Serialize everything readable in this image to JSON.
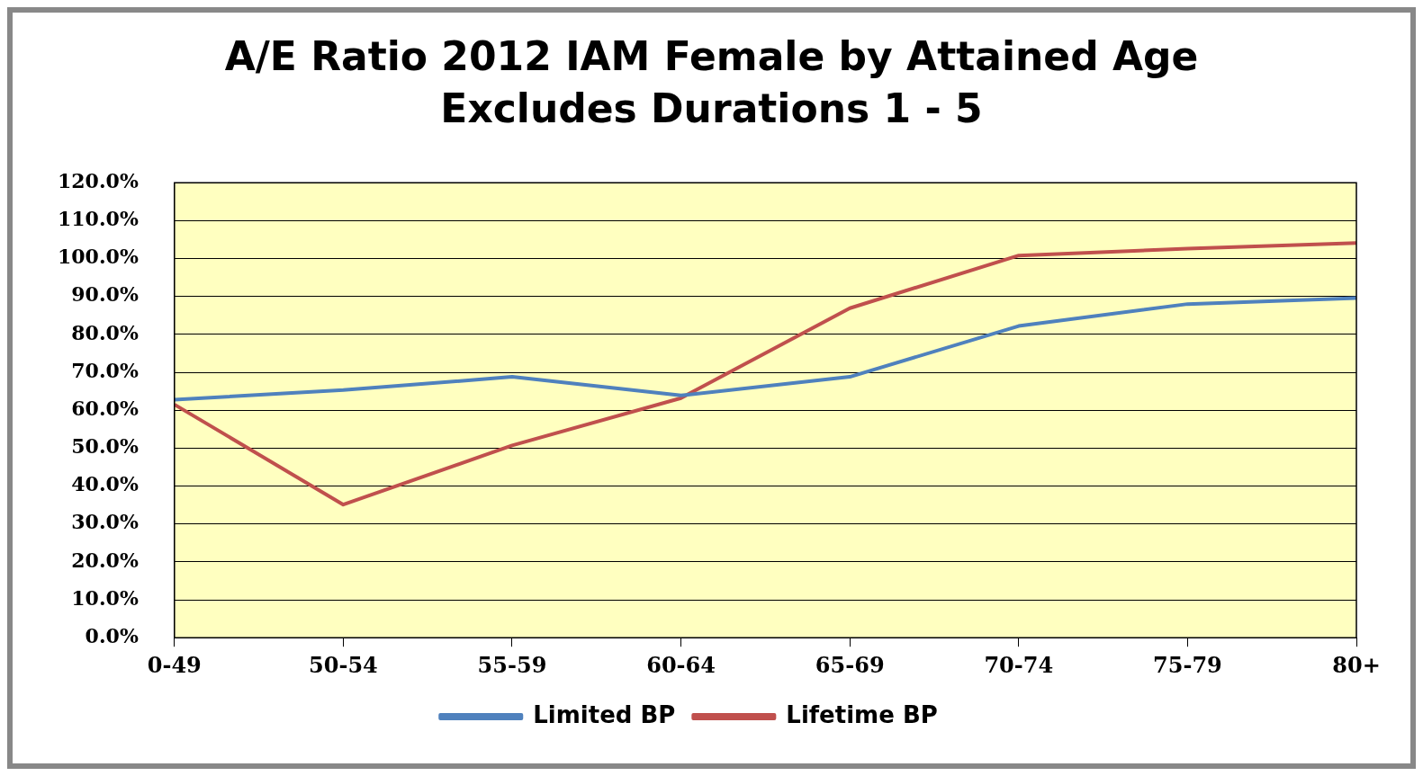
{
  "chart_data": {
    "type": "line",
    "title": "A/E Ratio 2012 IAM Female by Attained Age Excludes Durations 1 - 5",
    "categories": [
      "0-49",
      "50-54",
      "55-59",
      "60-64",
      "65-69",
      "70-74",
      "75-79",
      "80+"
    ],
    "series": [
      {
        "name": "Limited BP",
        "color": "#4f81bd",
        "values": [
          62.8,
          65.3,
          68.8,
          63.9,
          68.8,
          82.2,
          88.0,
          89.6
        ]
      },
      {
        "name": "Lifetime BP",
        "color": "#c0504d",
        "values": [
          61.5,
          35.1,
          50.7,
          63.2,
          86.9,
          100.8,
          102.6,
          104.1
        ]
      }
    ],
    "ylim": [
      0,
      120
    ],
    "yticks": [
      {
        "value": 0,
        "label": "0.0%"
      },
      {
        "value": 10,
        "label": "10.0%"
      },
      {
        "value": 20,
        "label": "20.0%"
      },
      {
        "value": 30,
        "label": "30.0%"
      },
      {
        "value": 40,
        "label": "40.0%"
      },
      {
        "value": 50,
        "label": "50.0%"
      },
      {
        "value": 60,
        "label": "60.0%"
      },
      {
        "value": 70,
        "label": "70.0%"
      },
      {
        "value": 80,
        "label": "80.0%"
      },
      {
        "value": 90,
        "label": "90.0%"
      },
      {
        "value": 100,
        "label": "100.0%"
      },
      {
        "value": 110,
        "label": "110.0%"
      },
      {
        "value": 120,
        "label": "120.0%"
      }
    ],
    "grid": "y",
    "legend": "bottom",
    "marker": "none",
    "line_style": "solid"
  }
}
